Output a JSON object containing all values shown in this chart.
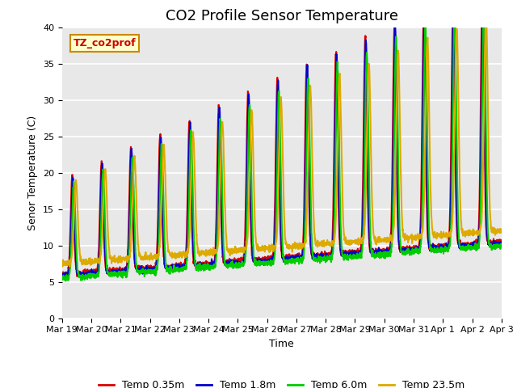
{
  "title": "CO2 Profile Sensor Temperature",
  "xlabel": "Time",
  "ylabel": "Senor Temperature (C)",
  "ylim": [
    0,
    40
  ],
  "xtick_labels": [
    "Mar 19",
    "Mar 20",
    "Mar 21",
    "Mar 22",
    "Mar 23",
    "Mar 24",
    "Mar 25",
    "Mar 26",
    "Mar 27",
    "Mar 28",
    "Mar 29",
    "Mar 30",
    "Mar 31",
    "Apr 1",
    "Apr 2",
    "Apr 3"
  ],
  "series": {
    "Temp 0.35m": {
      "color": "#dd0000",
      "lw": 1.5
    },
    "Temp 1.8m": {
      "color": "#0000cc",
      "lw": 1.5
    },
    "Temp 6.0m": {
      "color": "#00cc00",
      "lw": 1.5
    },
    "Temp 23.5m": {
      "color": "#ddaa00",
      "lw": 1.5
    }
  },
  "annotation_text": "TZ_co2prof",
  "annotation_bg": "#ffffcc",
  "annotation_border": "#cc8800",
  "annotation_text_color": "#cc0000",
  "grid_color": "#ffffff",
  "bg_color": "#e8e8e8",
  "title_fontsize": 13
}
